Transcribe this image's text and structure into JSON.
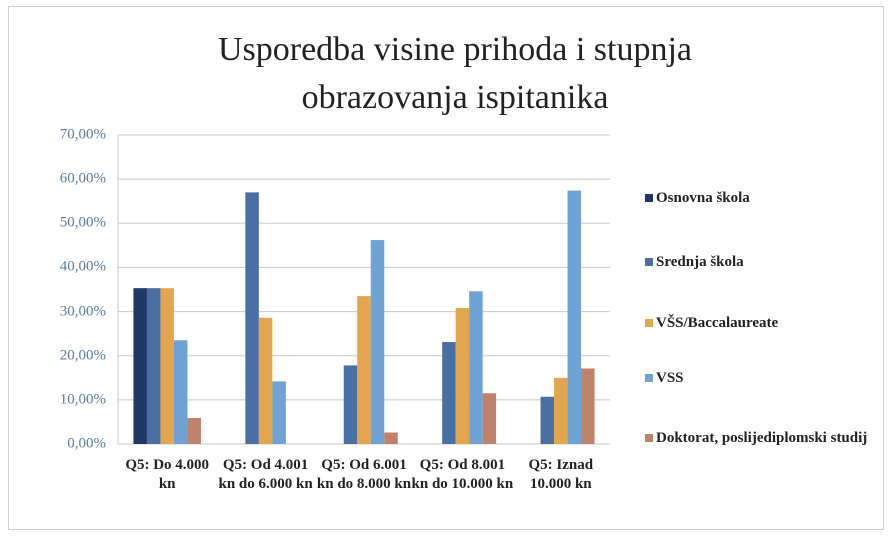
{
  "chart_data": {
    "type": "bar",
    "title": "Usporedba visine prihoda i stupnja obrazovanja ispitanika",
    "categories": [
      "Q5: Do 4.000 kn",
      "Q5: Od 4.001 kn do 6.000 kn",
      "Q5: Od 6.001 kn do 8.000 kn",
      "Q5: Od 8.001 kn do 10.000 kn",
      "Q5: Iznad 10.000 kn"
    ],
    "series": [
      {
        "name": "Osnovna škola",
        "color": "#1f3864",
        "values": [
          35.3,
          0,
          0,
          0,
          0
        ]
      },
      {
        "name": "Srednja škola",
        "color": "#4a6fa5",
        "values": [
          35.3,
          57,
          17.8,
          23.1,
          10.7
        ]
      },
      {
        "name": "VŠS/Baccalaureate",
        "color": "#e3a64f",
        "values": [
          35.3,
          28.6,
          33.5,
          30.8,
          15
        ]
      },
      {
        "name": "VSS",
        "color": "#6fa3d6",
        "values": [
          23.5,
          14.2,
          46.2,
          34.6,
          57.4
        ]
      },
      {
        "name": "Doktorat, poslijediplomski studij",
        "color": "#c0826a",
        "values": [
          5.9,
          0,
          2.6,
          11.5,
          17.1
        ]
      }
    ],
    "ylim": [
      0,
      70
    ],
    "yticks": [
      {
        "value": 0,
        "label": "0,00%"
      },
      {
        "value": 10,
        "label": "10,00%"
      },
      {
        "value": 20,
        "label": "20,00%"
      },
      {
        "value": 30,
        "label": "30,00%"
      },
      {
        "value": 40,
        "label": "40,00%"
      },
      {
        "value": 50,
        "label": "50,00%"
      },
      {
        "value": 60,
        "label": "60,00%"
      },
      {
        "value": 70,
        "label": "70,00%"
      }
    ],
    "grid": true
  }
}
